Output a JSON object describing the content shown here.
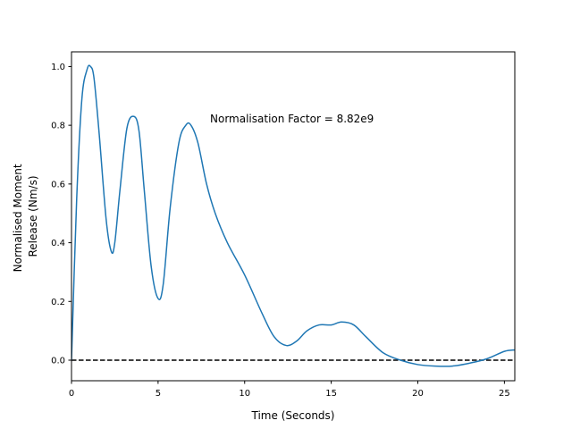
{
  "chart_data": {
    "type": "line",
    "title": "",
    "xlabel": "Time (Seconds)",
    "ylabel_lines": [
      "Normalised Moment",
      "Release (Nm/s)"
    ],
    "xlim": [
      0,
      25.6
    ],
    "ylim": [
      -0.07,
      1.05
    ],
    "xticks": [
      0,
      5,
      10,
      15,
      20,
      25
    ],
    "yticks": [
      0.0,
      0.2,
      0.4,
      0.6,
      0.8,
      1.0
    ],
    "xtick_labels": [
      "0",
      "5",
      "10",
      "15",
      "20",
      "25"
    ],
    "ytick_labels": [
      "0.0",
      "0.2",
      "0.4",
      "0.6",
      "0.8",
      "1.0"
    ],
    "grid": false,
    "annotation": {
      "text": "Normalisation Factor = 8.82e9",
      "x": 8.0,
      "y": 0.81
    },
    "reference_line": {
      "y": 0.0,
      "style": "dashed",
      "color": "#000000"
    },
    "series": [
      {
        "color": "#1f77b4",
        "x": [
          0,
          0.3,
          0.6,
          0.9,
          1.1,
          1.3,
          1.6,
          2.0,
          2.3,
          2.5,
          2.8,
          3.2,
          3.6,
          3.9,
          4.2,
          4.6,
          5.0,
          5.3,
          5.7,
          6.2,
          6.6,
          6.9,
          7.3,
          7.8,
          8.3,
          9.0,
          10.0,
          11.0,
          11.7,
          12.4,
          13.0,
          13.6,
          14.3,
          15.0,
          15.6,
          16.3,
          17.0,
          18.0,
          19.0,
          20.0,
          21.0,
          22.0,
          23.0,
          24.0,
          25.0,
          25.6
        ],
        "y": [
          0.0,
          0.55,
          0.89,
          0.99,
          1.0,
          0.96,
          0.77,
          0.48,
          0.37,
          0.4,
          0.58,
          0.79,
          0.83,
          0.78,
          0.58,
          0.32,
          0.21,
          0.26,
          0.52,
          0.74,
          0.8,
          0.8,
          0.74,
          0.6,
          0.5,
          0.4,
          0.29,
          0.16,
          0.08,
          0.05,
          0.065,
          0.1,
          0.12,
          0.12,
          0.13,
          0.12,
          0.08,
          0.025,
          0.0,
          -0.015,
          -0.02,
          -0.02,
          -0.01,
          0.005,
          0.03,
          0.035
        ]
      }
    ]
  }
}
